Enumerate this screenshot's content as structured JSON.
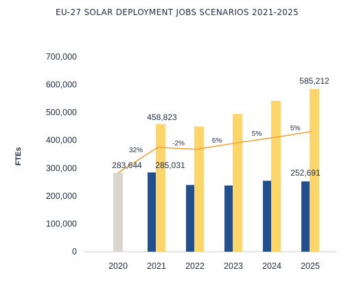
{
  "chart_data": {
    "type": "bar",
    "title": "EU-27 SOLAR DEPLOYMENT JOBS SCENARIOS 2021-2025",
    "ylabel": "FTEs",
    "xlabel": "",
    "ylim": [
      0,
      700000
    ],
    "yticks": [
      "0",
      "100,000",
      "200,000",
      "300,000",
      "400,000",
      "500,000",
      "600,000",
      "700,000"
    ],
    "categories": [
      "2020",
      "2021",
      "2022",
      "2023",
      "2024",
      "2025"
    ],
    "series": [
      {
        "values": [
          283644,
          null,
          null,
          null,
          null,
          null
        ],
        "color": "#d9d6d0"
      },
      {
        "values": [
          null,
          285031,
          240000,
          238000,
          255000,
          252691
        ],
        "color": "#22508d"
      },
      {
        "values": [
          null,
          458823,
          450000,
          495000,
          542000,
          585212
        ],
        "color": "#fdd56b"
      },
      {
        "type": "line",
        "values": [
          283644,
          375000,
          368000,
          390000,
          410000,
          432000
        ],
        "color": "#f0a53a"
      }
    ],
    "data_labels": [
      {
        "category": "2020",
        "text": "283,644"
      },
      {
        "category": "2021",
        "text": "285,031"
      },
      {
        "category": "2021",
        "text": "458,823"
      },
      {
        "category": "2025",
        "text": "585,212"
      },
      {
        "category": "2025",
        "text": "252,691"
      }
    ],
    "growth_labels": [
      "32%",
      "-2%",
      "6%",
      "5%",
      "5%"
    ],
    "grid": false
  }
}
